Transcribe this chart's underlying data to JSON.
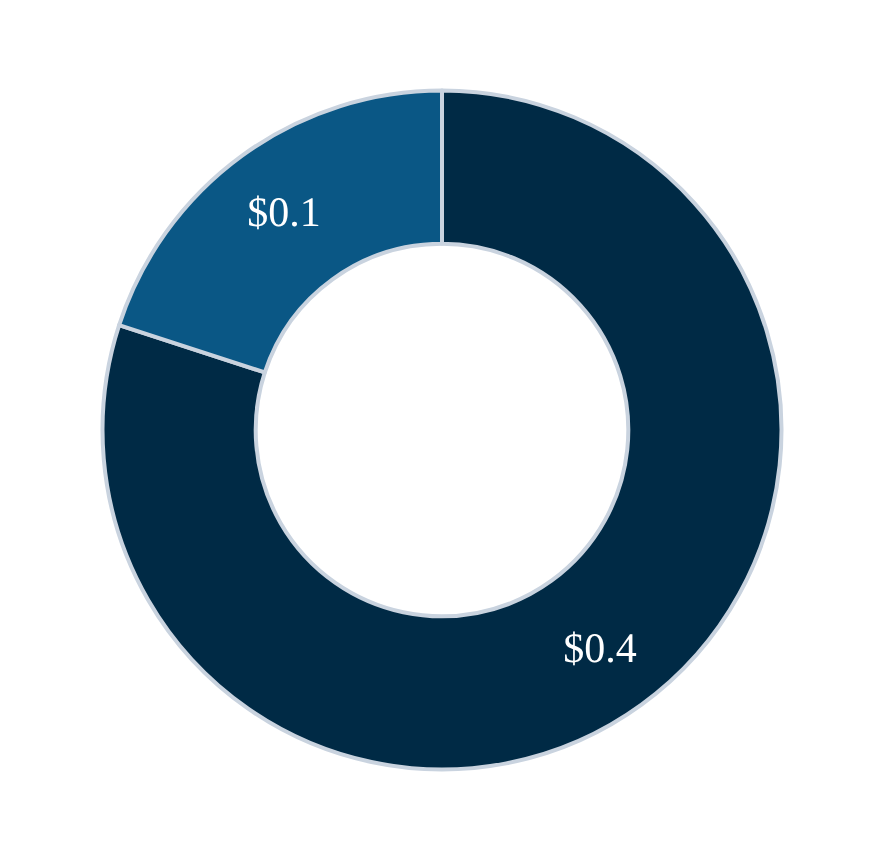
{
  "chart_data": {
    "type": "donut",
    "categories": [
      null,
      null
    ],
    "values": [
      0.4,
      0.1
    ],
    "value_labels": [
      "$0.4",
      "$0.1"
    ],
    "colors": [
      "#002a45",
      "#0a5785"
    ]
  }
}
